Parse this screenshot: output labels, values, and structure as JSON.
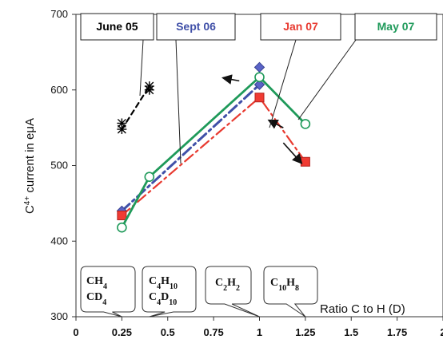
{
  "chart_data": {
    "type": "line",
    "title": "",
    "xlabel": "Ratio C to H (D)",
    "ylabel_prefix": "C",
    "ylabel_superscript": "4+",
    "ylabel_suffix": " current in eμA",
    "xlim": [
      0,
      2
    ],
    "ylim": [
      300,
      700
    ],
    "x_ticks": [
      0,
      0.25,
      0.5,
      0.75,
      1,
      1.25,
      1.5,
      1.75,
      2
    ],
    "x_tick_labels": [
      "0",
      "0.25",
      "0.5",
      "0.75",
      "1",
      "1.25",
      "1.5",
      "1.75",
      "2"
    ],
    "y_ticks": [
      300,
      400,
      500,
      600,
      700
    ],
    "y_tick_labels": [
      "300",
      "400",
      "500",
      "600",
      "700"
    ],
    "gridlines": false,
    "series": [
      {
        "name": "June 05",
        "color": "#000000",
        "line_style": "dashed",
        "marker": "asterisk",
        "x": [
          0.25,
          0.4
        ],
        "y": [
          548,
          605
        ],
        "extra_points": [
          {
            "x": 0.25,
            "y": 556
          },
          {
            "x": 0.4,
            "y": 600
          }
        ]
      },
      {
        "name": "Sept 06",
        "color": "#4050a8",
        "line_style": "dashdot",
        "marker": "diamond",
        "x": [
          0.25,
          1
        ],
        "y": [
          440,
          607
        ],
        "extra_points": [
          {
            "x": 1,
            "y": 630
          }
        ]
      },
      {
        "name": "Jan 07",
        "color": "#e83a30",
        "line_style": "dashdot",
        "marker": "square",
        "x": [
          0.25,
          1,
          1.25
        ],
        "y": [
          434,
          590,
          505
        ],
        "extra_points": []
      },
      {
        "name": "May 07",
        "color": "#1f9a5a",
        "line_style": "solid",
        "marker": "circle",
        "x": [
          0.25,
          0.4,
          1,
          1.25
        ],
        "y": [
          418,
          485,
          617,
          555
        ],
        "extra_points": []
      }
    ],
    "legend": [
      {
        "label": "June 05",
        "color": "#000000"
      },
      {
        "label": "Sept 06",
        "color": "#4050a8"
      },
      {
        "label": "Jan 07",
        "color": "#e83a30"
      },
      {
        "label": "May 07",
        "color": "#1f9a5a"
      }
    ],
    "gas_annotations": [
      {
        "lines": [
          [
            "CH",
            "4",
            ""
          ],
          [
            "CD",
            "4",
            ""
          ]
        ],
        "x": 0.25
      },
      {
        "lines": [
          [
            "C",
            "4",
            "H"
          ],
          [
            "C",
            "4",
            "D"
          ]
        ],
        "subs_second": [
          [
            "10"
          ],
          [
            "10"
          ]
        ],
        "x": 0.4
      },
      {
        "lines": [
          [
            "C",
            "2",
            "H"
          ]
        ],
        "subs_second": [
          [
            "2"
          ]
        ],
        "x": 1
      },
      {
        "lines": [
          [
            "C",
            "10",
            "H"
          ]
        ],
        "subs_second": [
          [
            "8"
          ]
        ],
        "x": 1.25
      }
    ]
  }
}
